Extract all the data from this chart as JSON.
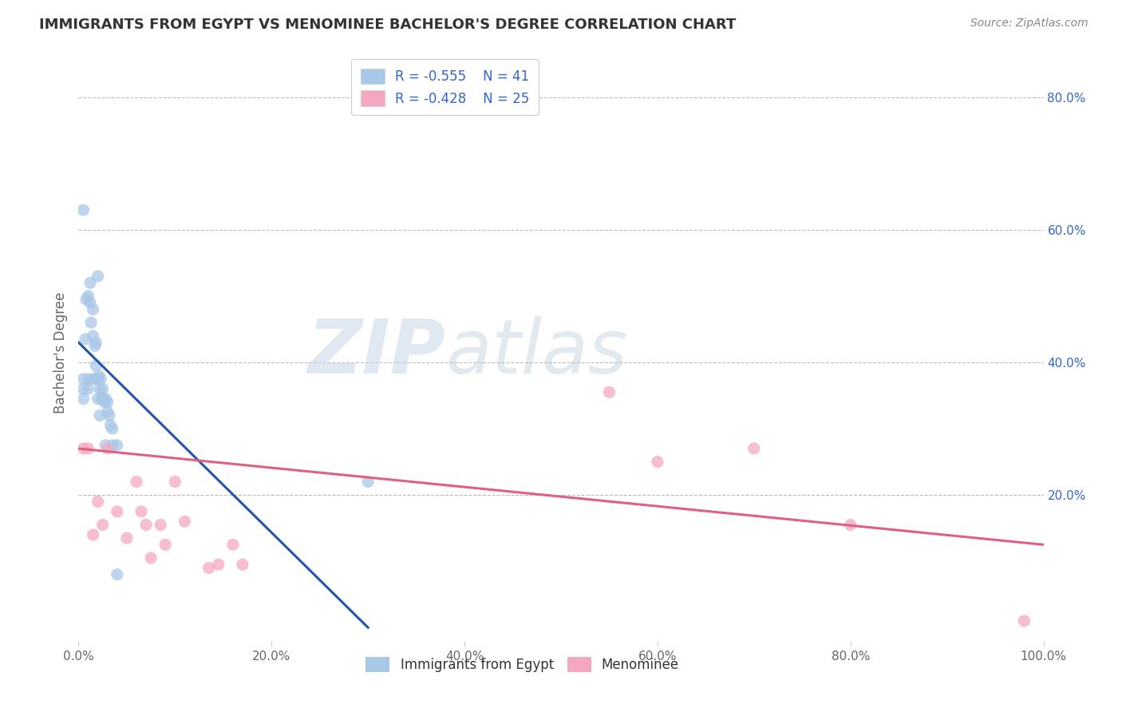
{
  "title": "IMMIGRANTS FROM EGYPT VS MENOMINEE BACHELOR'S DEGREE CORRELATION CHART",
  "source": "Source: ZipAtlas.com",
  "ylabel": "Bachelor's Degree",
  "xlim": [
    0.0,
    1.0
  ],
  "ylim": [
    -0.02,
    0.85
  ],
  "xticks": [
    0.0,
    0.2,
    0.4,
    0.6,
    0.8,
    1.0
  ],
  "xticklabels": [
    "0.0%",
    "20.0%",
    "40.0%",
    "60.0%",
    "80.0%",
    "100.0%"
  ],
  "yticks_right": [
    0.2,
    0.4,
    0.6,
    0.8
  ],
  "yticklabels_right": [
    "20.0%",
    "40.0%",
    "60.0%",
    "80.0%"
  ],
  "blue_scatter_x": [
    0.005,
    0.005,
    0.005,
    0.007,
    0.008,
    0.01,
    0.01,
    0.01,
    0.012,
    0.012,
    0.013,
    0.015,
    0.015,
    0.015,
    0.017,
    0.018,
    0.018,
    0.019,
    0.02,
    0.02,
    0.02,
    0.021,
    0.022,
    0.022,
    0.023,
    0.024,
    0.025,
    0.025,
    0.027,
    0.028,
    0.028,
    0.03,
    0.03,
    0.032,
    0.033,
    0.035,
    0.035,
    0.04,
    0.04,
    0.3,
    0.005
  ],
  "blue_scatter_y": [
    0.375,
    0.36,
    0.345,
    0.435,
    0.495,
    0.5,
    0.375,
    0.36,
    0.52,
    0.49,
    0.46,
    0.48,
    0.44,
    0.375,
    0.425,
    0.43,
    0.395,
    0.375,
    0.53,
    0.375,
    0.345,
    0.38,
    0.32,
    0.36,
    0.375,
    0.345,
    0.36,
    0.345,
    0.34,
    0.345,
    0.275,
    0.34,
    0.325,
    0.32,
    0.305,
    0.3,
    0.275,
    0.275,
    0.08,
    0.22,
    0.63
  ],
  "pink_scatter_x": [
    0.005,
    0.01,
    0.015,
    0.02,
    0.025,
    0.03,
    0.04,
    0.05,
    0.06,
    0.065,
    0.07,
    0.075,
    0.085,
    0.09,
    0.1,
    0.11,
    0.135,
    0.145,
    0.16,
    0.17,
    0.55,
    0.6,
    0.7,
    0.8,
    0.98
  ],
  "pink_scatter_y": [
    0.27,
    0.27,
    0.14,
    0.19,
    0.155,
    0.27,
    0.175,
    0.135,
    0.22,
    0.175,
    0.155,
    0.105,
    0.155,
    0.125,
    0.22,
    0.16,
    0.09,
    0.095,
    0.125,
    0.095,
    0.355,
    0.25,
    0.27,
    0.155,
    0.01
  ],
  "blue_line_x": [
    0.0,
    0.3
  ],
  "blue_line_y": [
    0.43,
    0.0
  ],
  "pink_line_x": [
    0.0,
    1.0
  ],
  "pink_line_y": [
    0.27,
    0.125
  ],
  "blue_color": "#A8C8E8",
  "pink_color": "#F4A8C0",
  "blue_line_color": "#2255AA",
  "pink_line_color": "#E06080",
  "R_blue": "-0.555",
  "N_blue": "41",
  "R_pink": "-0.428",
  "N_pink": "25",
  "legend_label_blue": "Immigrants from Egypt",
  "legend_label_pink": "Menominee",
  "watermark_zip": "ZIP",
  "watermark_atlas": "atlas",
  "background_color": "#ffffff",
  "grid_color": "#bbbbbb",
  "title_color": "#333333",
  "stats_color": "#3366CC"
}
